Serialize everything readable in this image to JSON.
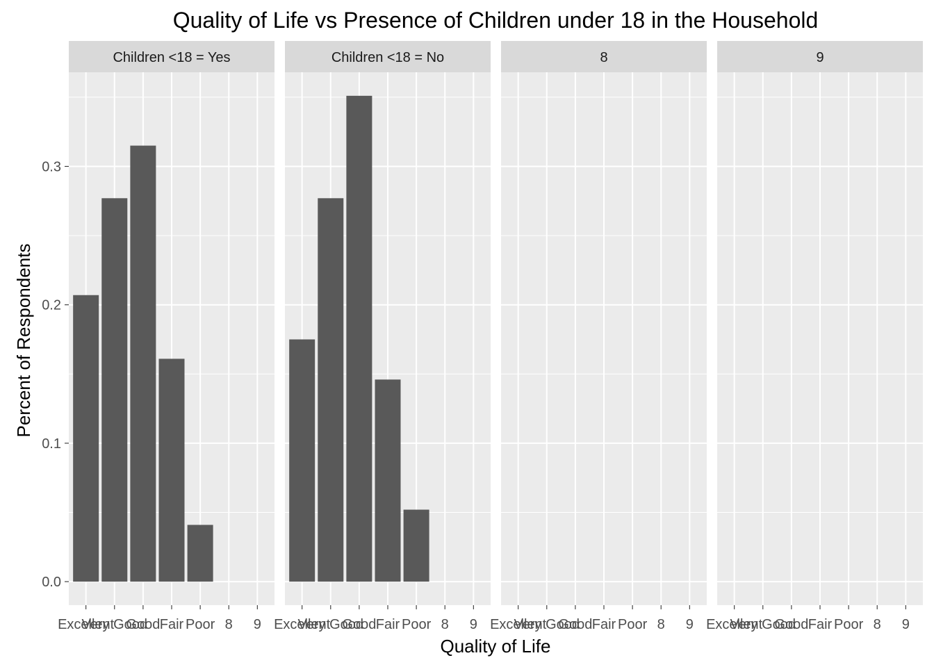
{
  "chart_data": {
    "type": "bar",
    "title": "Quality of Life vs Presence of Children under 18 in the Household",
    "xlabel": "Quality of Life",
    "ylabel": "Percent of Respondents",
    "categories": [
      "Excellent",
      "Very Good",
      "Good",
      "Fair",
      "Poor",
      "8",
      "9"
    ],
    "y_ticks": [
      "0.0",
      "0.1",
      "0.2",
      "0.3"
    ],
    "y_tick_values": [
      0.0,
      0.1,
      0.2,
      0.3
    ],
    "ylim": [
      -0.017,
      0.368
    ],
    "grid": true,
    "bar_color": "#595959",
    "panel_background": "#ebebeb",
    "strip_background": "#d9d9d9",
    "panels": [
      {
        "label": "Children <18 = Yes",
        "values": [
          0.207,
          0.277,
          0.315,
          0.161,
          0.041,
          0,
          0
        ]
      },
      {
        "label": "Children <18 = No",
        "values": [
          0.175,
          0.277,
          0.351,
          0.146,
          0.052,
          0,
          0
        ]
      },
      {
        "label": "8",
        "values": [
          0,
          0,
          0,
          0,
          0,
          0,
          0
        ]
      },
      {
        "label": "9",
        "values": [
          0,
          0,
          0,
          0,
          0,
          0,
          0
        ]
      }
    ]
  }
}
